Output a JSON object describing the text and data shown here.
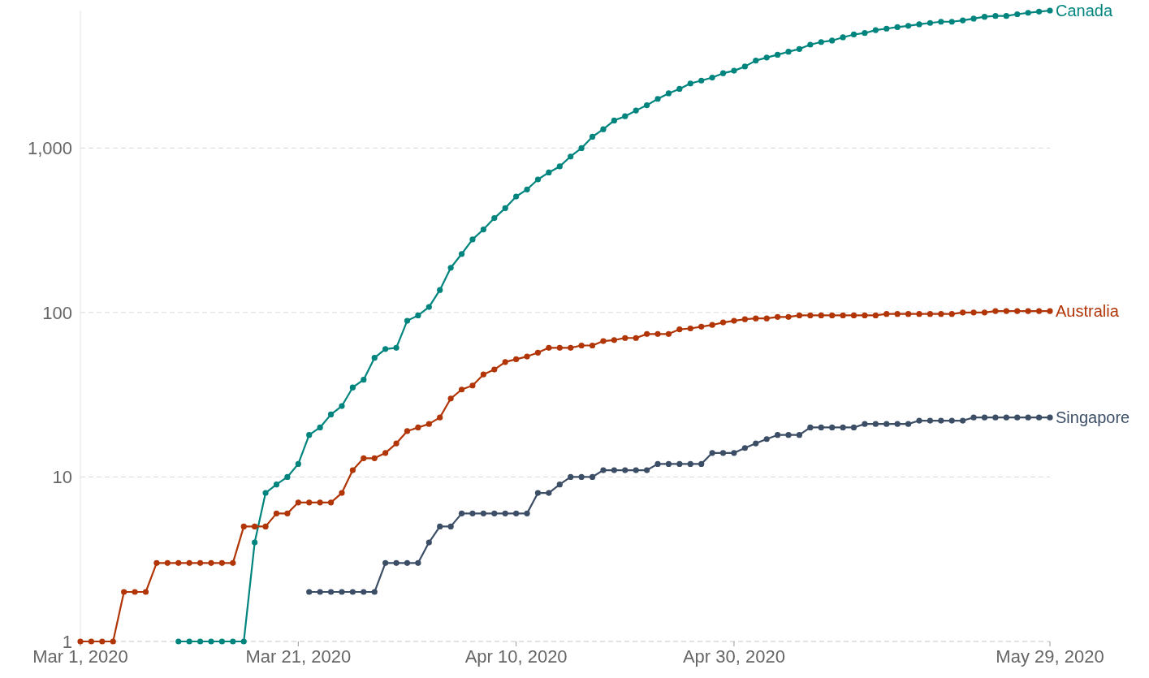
{
  "chart_data": {
    "type": "line",
    "log": true,
    "grid": "y",
    "marker": "circle",
    "line_style": "solid",
    "x": [
      "2020-03-01",
      "2020-03-02",
      "2020-03-03",
      "2020-03-04",
      "2020-03-05",
      "2020-03-06",
      "2020-03-07",
      "2020-03-08",
      "2020-03-09",
      "2020-03-10",
      "2020-03-11",
      "2020-03-12",
      "2020-03-13",
      "2020-03-14",
      "2020-03-15",
      "2020-03-16",
      "2020-03-17",
      "2020-03-18",
      "2020-03-19",
      "2020-03-20",
      "2020-03-21",
      "2020-03-22",
      "2020-03-23",
      "2020-03-24",
      "2020-03-25",
      "2020-03-26",
      "2020-03-27",
      "2020-03-28",
      "2020-03-29",
      "2020-03-30",
      "2020-03-31",
      "2020-04-01",
      "2020-04-02",
      "2020-04-03",
      "2020-04-04",
      "2020-04-05",
      "2020-04-06",
      "2020-04-07",
      "2020-04-08",
      "2020-04-09",
      "2020-04-10",
      "2020-04-11",
      "2020-04-12",
      "2020-04-13",
      "2020-04-14",
      "2020-04-15",
      "2020-04-16",
      "2020-04-17",
      "2020-04-18",
      "2020-04-19",
      "2020-04-20",
      "2020-04-21",
      "2020-04-22",
      "2020-04-23",
      "2020-04-24",
      "2020-04-25",
      "2020-04-26",
      "2020-04-27",
      "2020-04-28",
      "2020-04-29",
      "2020-04-30",
      "2020-05-01",
      "2020-05-02",
      "2020-05-03",
      "2020-05-04",
      "2020-05-05",
      "2020-05-06",
      "2020-05-07",
      "2020-05-08",
      "2020-05-09",
      "2020-05-10",
      "2020-05-11",
      "2020-05-12",
      "2020-05-13",
      "2020-05-14",
      "2020-05-15",
      "2020-05-16",
      "2020-05-17",
      "2020-05-18",
      "2020-05-19",
      "2020-05-20",
      "2020-05-21",
      "2020-05-22",
      "2020-05-23",
      "2020-05-24",
      "2020-05-25",
      "2020-05-26",
      "2020-05-27",
      "2020-05-28",
      "2020-05-29"
    ],
    "xlim": [
      "2020-03-01",
      "2020-05-29"
    ],
    "xticks": [
      {
        "value": "2020-03-01",
        "label": "Mar 1, 2020"
      },
      {
        "value": "2020-03-21",
        "label": "Mar 21, 2020"
      },
      {
        "value": "2020-04-10",
        "label": "Apr 10, 2020"
      },
      {
        "value": "2020-04-30",
        "label": "Apr 30, 2020"
      },
      {
        "value": "2020-05-29",
        "label": "May 29, 2020"
      }
    ],
    "ylim": [
      1,
      6850
    ],
    "yticks": [
      1,
      10,
      100,
      {
        "value": 1000,
        "label": "1,000"
      }
    ],
    "series": [
      {
        "name": "Canada",
        "color": "#00847e",
        "values": [
          null,
          null,
          null,
          null,
          null,
          null,
          null,
          null,
          null,
          1,
          1,
          1,
          1,
          1,
          1,
          1,
          4,
          8,
          9,
          10,
          12,
          18,
          20,
          24,
          27,
          35,
          39,
          53,
          60,
          61,
          89,
          96,
          108,
          137,
          187,
          227,
          278,
          320,
          375,
          431,
          507,
          560,
          644,
          710,
          773,
          888,
          998,
          1170,
          1300,
          1470,
          1560,
          1690,
          1820,
          1990,
          2150,
          2290,
          2470,
          2570,
          2680,
          2850,
          2950,
          3130,
          3400,
          3550,
          3690,
          3850,
          4000,
          4250,
          4410,
          4500,
          4710,
          4900,
          5000,
          5210,
          5320,
          5430,
          5530,
          5650,
          5760,
          5860,
          5860,
          5970,
          6120,
          6280,
          6350,
          6350,
          6510,
          6640,
          6750,
          6850
        ]
      },
      {
        "name": "Australia",
        "color": "#b13507",
        "values": [
          1,
          1,
          1,
          1,
          2,
          2,
          2,
          3,
          3,
          3,
          3,
          3,
          3,
          3,
          3,
          5,
          5,
          5,
          6,
          6,
          7,
          7,
          7,
          7,
          8,
          11,
          13,
          13,
          14,
          16,
          19,
          20,
          21,
          23,
          30,
          34,
          36,
          42,
          45,
          50,
          52,
          54,
          57,
          61,
          61,
          61,
          63,
          63,
          67,
          68,
          70,
          70,
          74,
          74,
          74,
          79,
          80,
          82,
          84,
          87,
          89,
          91,
          92,
          92,
          94,
          94,
          96,
          96,
          96,
          96,
          96,
          96,
          96,
          96,
          98,
          98,
          98,
          98,
          98,
          98,
          98,
          100,
          100,
          100,
          102,
          102,
          102,
          102,
          102,
          102
        ]
      },
      {
        "name": "Singapore",
        "color": "#3c4e66",
        "values": [
          null,
          null,
          null,
          null,
          null,
          null,
          null,
          null,
          null,
          null,
          null,
          null,
          null,
          null,
          null,
          null,
          null,
          null,
          null,
          null,
          null,
          2,
          2,
          2,
          2,
          2,
          2,
          2,
          3,
          3,
          3,
          3,
          4,
          5,
          5,
          6,
          6,
          6,
          6,
          6,
          6,
          6,
          8,
          8,
          9,
          10,
          10,
          10,
          11,
          11,
          11,
          11,
          11,
          12,
          12,
          12,
          12,
          12,
          14,
          14,
          14,
          15,
          16,
          17,
          18,
          18,
          18,
          20,
          20,
          20,
          20,
          20,
          21,
          21,
          21,
          21,
          21,
          22,
          22,
          22,
          22,
          22,
          23,
          23,
          23,
          23,
          23,
          23,
          23,
          23
        ]
      }
    ]
  }
}
